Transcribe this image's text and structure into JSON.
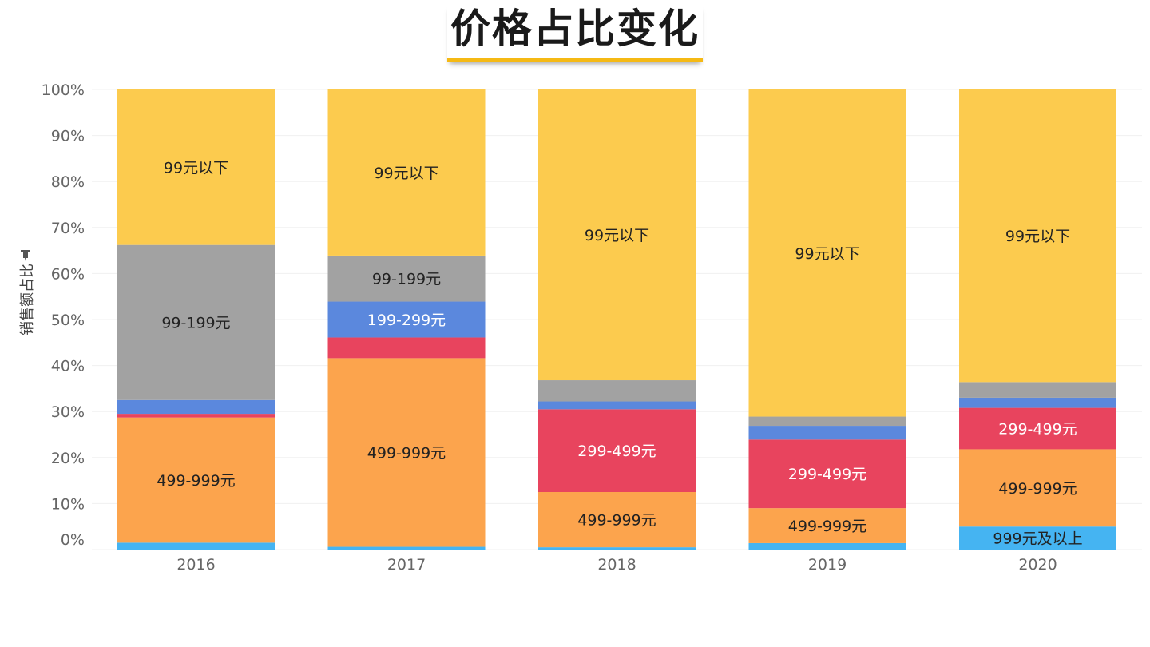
{
  "title": "价格占比变化",
  "chart_data": {
    "type": "bar",
    "stacked": true,
    "ylabel": "销售额占比",
    "ylim": [
      0,
      100
    ],
    "yticks": [
      "0%",
      "10%",
      "20%",
      "30%",
      "40%",
      "50%",
      "60%",
      "70%",
      "80%",
      "90%",
      "100%"
    ],
    "categories": [
      "2016",
      "2017",
      "2018",
      "2019",
      "2020"
    ],
    "series": [
      {
        "name": "999元及以上",
        "color": "#45b4f2",
        "text_color": "#222222",
        "values": [
          1.5,
          0.6,
          0.5,
          1.4,
          5.0
        ]
      },
      {
        "name": "499-999元",
        "color": "#fca44d",
        "text_color": "#222222",
        "values": [
          27.2,
          41.0,
          12.0,
          7.6,
          16.8
        ]
      },
      {
        "name": "299-499元",
        "color": "#e8445e",
        "text_color": "#ffffff",
        "values": [
          0.8,
          4.5,
          18.0,
          14.9,
          9.0
        ]
      },
      {
        "name": "199-299元",
        "color": "#5b88dd",
        "text_color": "#ffffff",
        "values": [
          3.0,
          7.8,
          1.7,
          3.0,
          2.2
        ]
      },
      {
        "name": "99-199元",
        "color": "#a2a2a2",
        "text_color": "#222222",
        "values": [
          33.7,
          10.0,
          4.6,
          2.0,
          3.4
        ]
      },
      {
        "name": "99元以下",
        "color": "#fccb4e",
        "text_color": "#222222",
        "values": [
          33.8,
          36.1,
          63.2,
          71.1,
          63.6
        ]
      }
    ],
    "segment_labels": [
      [
        null,
        "499-999元",
        null,
        null,
        "99-199元",
        "99元以下"
      ],
      [
        null,
        "499-999元",
        null,
        "199-299元",
        "99-199元",
        "99元以下"
      ],
      [
        null,
        "499-999元",
        "299-499元",
        null,
        null,
        "99元以下"
      ],
      [
        null,
        "499-999元",
        "299-499元",
        null,
        null,
        "99元以下"
      ],
      [
        "999元及以上",
        "499-999元",
        "299-499元",
        null,
        null,
        "99元以下"
      ]
    ],
    "grid": true,
    "legend": "none"
  }
}
